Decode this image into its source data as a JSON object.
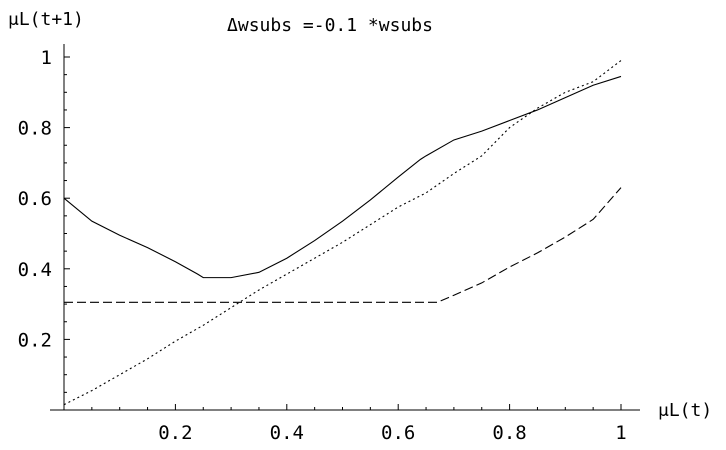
{
  "chart_data": {
    "type": "line",
    "title": "Δwsubs =-0.1 *wsubs",
    "xlabel": "μL(t)",
    "ylabel": "μL(t+1)",
    "xlim": [
      0,
      1
    ],
    "ylim": [
      0,
      1
    ],
    "x_ticks": [
      "0.2",
      "0.4",
      "0.6",
      "0.8",
      "1"
    ],
    "y_ticks": [
      "0.2",
      "0.4",
      "0.6",
      "0.8",
      "1"
    ],
    "x_tick_values": [
      0.2,
      0.4,
      0.6,
      0.8,
      1
    ],
    "y_tick_values": [
      0.2,
      0.4,
      0.6,
      0.8,
      1
    ],
    "grid": false,
    "legend": "none",
    "series": [
      {
        "style": "solid",
        "x": [
          0,
          0.05,
          0.1,
          0.15,
          0.2,
          0.24,
          0.25,
          0.3,
          0.35,
          0.4,
          0.45,
          0.5,
          0.55,
          0.6,
          0.64,
          0.65,
          0.7,
          0.75,
          0.8,
          0.85,
          0.9,
          0.95,
          1
        ],
        "y": [
          0.6,
          0.535,
          0.495,
          0.46,
          0.42,
          0.385,
          0.375,
          0.375,
          0.39,
          0.43,
          0.48,
          0.535,
          0.595,
          0.66,
          0.71,
          0.72,
          0.765,
          0.79,
          0.82,
          0.85,
          0.885,
          0.92,
          0.945
        ]
      },
      {
        "style": "dotted",
        "x": [
          0,
          0.05,
          0.1,
          0.15,
          0.2,
          0.25,
          0.3,
          0.35,
          0.4,
          0.45,
          0.5,
          0.55,
          0.6,
          0.65,
          0.7,
          0.75,
          0.8,
          0.85,
          0.9,
          0.95,
          1
        ],
        "y": [
          0.015,
          0.055,
          0.1,
          0.145,
          0.195,
          0.24,
          0.29,
          0.34,
          0.385,
          0.43,
          0.475,
          0.525,
          0.575,
          0.615,
          0.67,
          0.72,
          0.8,
          0.855,
          0.9,
          0.93,
          0.99
        ]
      },
      {
        "style": "dashed",
        "x": [
          0,
          0.1,
          0.2,
          0.3,
          0.4,
          0.5,
          0.6,
          0.67,
          0.7,
          0.75,
          0.8,
          0.85,
          0.9,
          0.95,
          1
        ],
        "y": [
          0.305,
          0.305,
          0.305,
          0.305,
          0.305,
          0.305,
          0.305,
          0.305,
          0.325,
          0.36,
          0.405,
          0.445,
          0.49,
          0.54,
          0.63
        ]
      }
    ]
  }
}
